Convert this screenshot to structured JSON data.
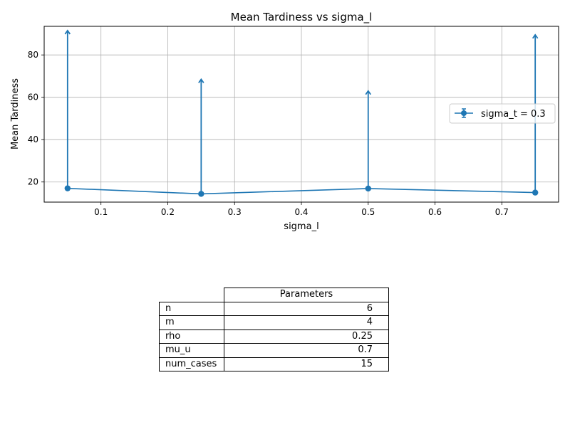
{
  "chart_data": {
    "type": "line",
    "title": "Mean Tardiness vs sigma_l",
    "xlabel": "sigma_l",
    "ylabel": "Mean Tardiness",
    "xlim": [
      0.015,
      0.785
    ],
    "ylim": [
      10.5,
      93.5
    ],
    "xticks": [
      0.1,
      0.2,
      0.3,
      0.4,
      0.5,
      0.6,
      0.7
    ],
    "xtick_labels": [
      "0.1",
      "0.2",
      "0.3",
      "0.4",
      "0.5",
      "0.6",
      "0.7"
    ],
    "yticks": [
      20,
      40,
      60,
      80
    ],
    "ytick_labels": [
      "20",
      "40",
      "60",
      "80"
    ],
    "grid": true,
    "legend_position": "center-right",
    "series": [
      {
        "name": "sigma_t = 0.3",
        "color": "#1f77b4",
        "x": [
          0.05,
          0.25,
          0.5,
          0.75
        ],
        "y": [
          17.0,
          14.4,
          16.9,
          15.0
        ],
        "yerr_upper": [
          91.5,
          68.5,
          63.0,
          89.5
        ],
        "yerr_lower_clipped": true
      }
    ]
  },
  "table": {
    "header": "Parameters",
    "rows": [
      {
        "key": "n",
        "value": "6"
      },
      {
        "key": "m",
        "value": "4"
      },
      {
        "key": "rho",
        "value": "0.25"
      },
      {
        "key": "mu_u",
        "value": "0.7"
      },
      {
        "key": "num_cases",
        "value": "15"
      }
    ]
  }
}
